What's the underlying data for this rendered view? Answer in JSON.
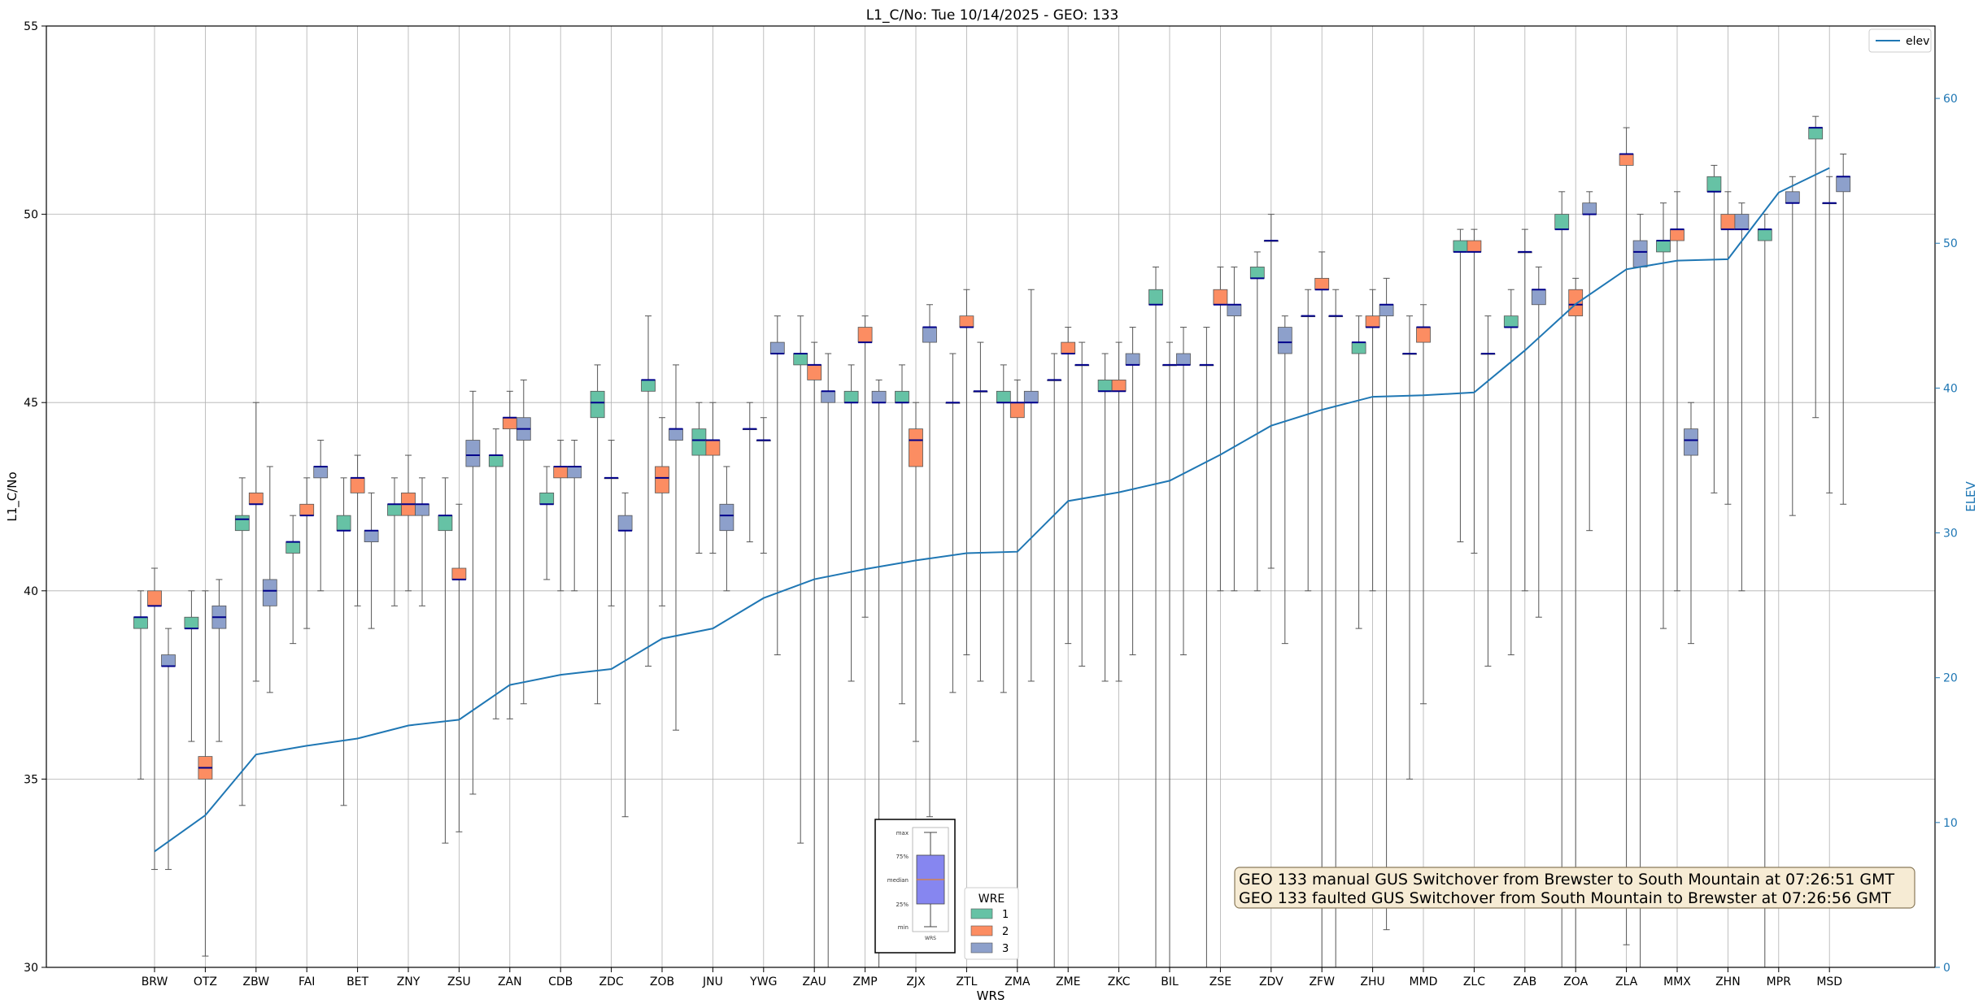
{
  "chart_data": {
    "type": "box",
    "title": "L1_C/No: Tue 10/14/2025 - GEO: 133",
    "xlabel": "WRS",
    "ylabel": "L1_C/No",
    "ylabel_right": "ELEV",
    "ylim": [
      30,
      55
    ],
    "ylim_right": [
      0,
      65
    ],
    "yticks": [
      30,
      35,
      40,
      45,
      50,
      55
    ],
    "yticks_right": [
      0,
      10,
      20,
      30,
      40,
      50,
      60
    ],
    "grid": true,
    "categories": [
      "BRW",
      "OTZ",
      "ZBW",
      "FAI",
      "BET",
      "ZNY",
      "ZSU",
      "ZAN",
      "CDB",
      "ZDC",
      "ZOB",
      "JNU",
      "YWG",
      "ZAU",
      "ZMP",
      "ZJX",
      "ZTL",
      "ZMA",
      "ZME",
      "ZKC",
      "BIL",
      "ZSE",
      "ZDV",
      "ZFW",
      "ZHU",
      "MMD",
      "ZLC",
      "ZAB",
      "ZOA",
      "ZLA",
      "MMX",
      "ZHN",
      "MPR",
      "MSD"
    ],
    "wre_colors": {
      "1": "#66c2a5",
      "2": "#fc8d62",
      "3": "#8da0cb"
    },
    "boxes": [
      {
        "site": "BRW",
        "wre": 1,
        "min": 35.0,
        "q1": 39.0,
        "median": 39.3,
        "q3": 39.3,
        "max": 40.0
      },
      {
        "site": "BRW",
        "wre": 2,
        "min": 32.6,
        "q1": 39.6,
        "median": 39.6,
        "q3": 40.0,
        "max": 40.6
      },
      {
        "site": "BRW",
        "wre": 3,
        "min": 32.6,
        "q1": 38.0,
        "median": 38.0,
        "q3": 38.3,
        "max": 39.0
      },
      {
        "site": "OTZ",
        "wre": 1,
        "min": 36.0,
        "q1": 39.0,
        "median": 39.0,
        "q3": 39.3,
        "max": 40.0
      },
      {
        "site": "OTZ",
        "wre": 2,
        "min": 30.3,
        "q1": 35.0,
        "median": 35.3,
        "q3": 35.6,
        "max": 40.0
      },
      {
        "site": "OTZ",
        "wre": 3,
        "min": 36.0,
        "q1": 39.0,
        "median": 39.3,
        "q3": 39.6,
        "max": 40.3
      },
      {
        "site": "ZBW",
        "wre": 1,
        "min": 34.3,
        "q1": 41.6,
        "median": 41.9,
        "q3": 42.0,
        "max": 43.0
      },
      {
        "site": "ZBW",
        "wre": 2,
        "min": 37.6,
        "q1": 42.3,
        "median": 42.3,
        "q3": 42.6,
        "max": 45.0
      },
      {
        "site": "ZBW",
        "wre": 3,
        "min": 37.3,
        "q1": 39.6,
        "median": 40.0,
        "q3": 40.3,
        "max": 43.3
      },
      {
        "site": "FAI",
        "wre": 1,
        "min": 38.6,
        "q1": 41.0,
        "median": 41.3,
        "q3": 41.3,
        "max": 42.0
      },
      {
        "site": "FAI",
        "wre": 2,
        "min": 39.0,
        "q1": 42.0,
        "median": 42.0,
        "q3": 42.3,
        "max": 43.0
      },
      {
        "site": "FAI",
        "wre": 3,
        "min": 40.0,
        "q1": 43.0,
        "median": 43.3,
        "q3": 43.3,
        "max": 44.0
      },
      {
        "site": "BET",
        "wre": 1,
        "min": 34.3,
        "q1": 41.6,
        "median": 41.6,
        "q3": 42.0,
        "max": 43.0
      },
      {
        "site": "BET",
        "wre": 2,
        "min": 39.6,
        "q1": 42.6,
        "median": 43.0,
        "q3": 43.0,
        "max": 43.6
      },
      {
        "site": "BET",
        "wre": 3,
        "min": 39.0,
        "q1": 41.3,
        "median": 41.6,
        "q3": 41.6,
        "max": 42.6
      },
      {
        "site": "ZNY",
        "wre": 1,
        "min": 39.6,
        "q1": 42.0,
        "median": 42.3,
        "q3": 42.3,
        "max": 43.0
      },
      {
        "site": "ZNY",
        "wre": 2,
        "min": 40.0,
        "q1": 42.0,
        "median": 42.3,
        "q3": 42.6,
        "max": 43.6
      },
      {
        "site": "ZNY",
        "wre": 3,
        "min": 39.6,
        "q1": 42.0,
        "median": 42.3,
        "q3": 42.3,
        "max": 43.0
      },
      {
        "site": "ZSU",
        "wre": 1,
        "min": 33.3,
        "q1": 41.6,
        "median": 42.0,
        "q3": 42.0,
        "max": 43.0
      },
      {
        "site": "ZSU",
        "wre": 2,
        "min": 33.6,
        "q1": 40.3,
        "median": 40.3,
        "q3": 40.6,
        "max": 42.3
      },
      {
        "site": "ZSU",
        "wre": 3,
        "min": 34.6,
        "q1": 43.3,
        "median": 43.6,
        "q3": 44.0,
        "max": 45.3
      },
      {
        "site": "ZAN",
        "wre": 1,
        "min": 36.6,
        "q1": 43.3,
        "median": 43.6,
        "q3": 43.6,
        "max": 44.3
      },
      {
        "site": "ZAN",
        "wre": 2,
        "min": 36.6,
        "q1": 44.3,
        "median": 44.6,
        "q3": 44.6,
        "max": 45.3
      },
      {
        "site": "ZAN",
        "wre": 3,
        "min": 37.0,
        "q1": 44.0,
        "median": 44.3,
        "q3": 44.6,
        "max": 45.6
      },
      {
        "site": "CDB",
        "wre": 1,
        "min": 40.3,
        "q1": 42.3,
        "median": 42.3,
        "q3": 42.6,
        "max": 43.3
      },
      {
        "site": "CDB",
        "wre": 2,
        "min": 40.0,
        "q1": 43.0,
        "median": 43.3,
        "q3": 43.3,
        "max": 44.0
      },
      {
        "site": "CDB",
        "wre": 3,
        "min": 40.0,
        "q1": 43.0,
        "median": 43.3,
        "q3": 43.3,
        "max": 44.0
      },
      {
        "site": "ZDC",
        "wre": 1,
        "min": 37.0,
        "q1": 44.6,
        "median": 45.0,
        "q3": 45.3,
        "max": 46.0
      },
      {
        "site": "ZDC",
        "wre": 2,
        "min": 39.6,
        "q1": 43.0,
        "median": 43.0,
        "q3": 43.0,
        "max": 44.0
      },
      {
        "site": "ZDC",
        "wre": 3,
        "min": 34.0,
        "q1": 41.6,
        "median": 41.6,
        "q3": 42.0,
        "max": 42.6
      },
      {
        "site": "ZOB",
        "wre": 1,
        "min": 38.0,
        "q1": 45.3,
        "median": 45.6,
        "q3": 45.6,
        "max": 47.3
      },
      {
        "site": "ZOB",
        "wre": 2,
        "min": 39.6,
        "q1": 42.6,
        "median": 43.0,
        "q3": 43.3,
        "max": 44.6
      },
      {
        "site": "ZOB",
        "wre": 3,
        "min": 36.3,
        "q1": 44.0,
        "median": 44.3,
        "q3": 44.3,
        "max": 46.0
      },
      {
        "site": "JNU",
        "wre": 1,
        "min": 41.0,
        "q1": 43.6,
        "median": 44.0,
        "q3": 44.3,
        "max": 45.0
      },
      {
        "site": "JNU",
        "wre": 2,
        "min": 41.0,
        "q1": 43.6,
        "median": 44.0,
        "q3": 44.0,
        "max": 45.0
      },
      {
        "site": "JNU",
        "wre": 3,
        "min": 40.0,
        "q1": 41.6,
        "median": 42.0,
        "q3": 42.3,
        "max": 43.3
      },
      {
        "site": "YWG",
        "wre": 1,
        "min": 41.3,
        "q1": 44.3,
        "median": 44.3,
        "q3": 44.3,
        "max": 45.0
      },
      {
        "site": "YWG",
        "wre": 2,
        "min": 41.0,
        "q1": 44.0,
        "median": 44.0,
        "q3": 44.0,
        "max": 44.6
      },
      {
        "site": "YWG",
        "wre": 3,
        "min": 38.3,
        "q1": 46.3,
        "median": 46.3,
        "q3": 46.6,
        "max": 47.3
      },
      {
        "site": "ZAU",
        "wre": 1,
        "min": 33.3,
        "q1": 46.0,
        "median": 46.3,
        "q3": 46.3,
        "max": 47.3
      },
      {
        "site": "ZAU",
        "wre": 2,
        "min": 30.0,
        "q1": 45.6,
        "median": 46.0,
        "q3": 46.0,
        "max": 46.6
      },
      {
        "site": "ZAU",
        "wre": 3,
        "min": 30.0,
        "q1": 45.0,
        "median": 45.3,
        "q3": 45.3,
        "max": 46.3
      },
      {
        "site": "ZMP",
        "wre": 1,
        "min": 37.6,
        "q1": 45.0,
        "median": 45.0,
        "q3": 45.3,
        "max": 46.0
      },
      {
        "site": "ZMP",
        "wre": 2,
        "min": 39.3,
        "q1": 46.6,
        "median": 46.6,
        "q3": 47.0,
        "max": 47.3
      },
      {
        "site": "ZMP",
        "wre": 3,
        "min": 30.0,
        "q1": 45.0,
        "median": 45.0,
        "q3": 45.3,
        "max": 45.6
      },
      {
        "site": "ZJX",
        "wre": 1,
        "min": 37.0,
        "q1": 45.0,
        "median": 45.0,
        "q3": 45.3,
        "max": 46.0
      },
      {
        "site": "ZJX",
        "wre": 2,
        "min": 36.0,
        "q1": 43.3,
        "median": 44.0,
        "q3": 44.3,
        "max": 45.0
      },
      {
        "site": "ZJX",
        "wre": 3,
        "min": 34.0,
        "q1": 46.6,
        "median": 47.0,
        "q3": 47.0,
        "max": 47.6
      },
      {
        "site": "ZTL",
        "wre": 1,
        "min": 37.3,
        "q1": 45.0,
        "median": 45.0,
        "q3": 45.0,
        "max": 46.3
      },
      {
        "site": "ZTL",
        "wre": 2,
        "min": 38.3,
        "q1": 47.0,
        "median": 47.0,
        "q3": 47.3,
        "max": 48.0
      },
      {
        "site": "ZTL",
        "wre": 3,
        "min": 37.6,
        "q1": 45.3,
        "median": 45.3,
        "q3": 45.3,
        "max": 46.6
      },
      {
        "site": "ZMA",
        "wre": 1,
        "min": 37.3,
        "q1": 45.0,
        "median": 45.0,
        "q3": 45.3,
        "max": 46.0
      },
      {
        "site": "ZMA",
        "wre": 2,
        "min": 30.0,
        "q1": 44.6,
        "median": 45.0,
        "q3": 45.0,
        "max": 45.6
      },
      {
        "site": "ZMA",
        "wre": 3,
        "min": 37.6,
        "q1": 45.0,
        "median": 45.0,
        "q3": 45.3,
        "max": 48.0
      },
      {
        "site": "ZME",
        "wre": 1,
        "min": 30.0,
        "q1": 45.6,
        "median": 45.6,
        "q3": 45.6,
        "max": 46.3
      },
      {
        "site": "ZME",
        "wre": 2,
        "min": 38.6,
        "q1": 46.3,
        "median": 46.3,
        "q3": 46.6,
        "max": 47.0
      },
      {
        "site": "ZME",
        "wre": 3,
        "min": 38.0,
        "q1": 46.0,
        "median": 46.0,
        "q3": 46.0,
        "max": 46.6
      },
      {
        "site": "ZKC",
        "wre": 1,
        "min": 37.6,
        "q1": 45.3,
        "median": 45.3,
        "q3": 45.6,
        "max": 46.3
      },
      {
        "site": "ZKC",
        "wre": 2,
        "min": 37.6,
        "q1": 45.3,
        "median": 45.3,
        "q3": 45.6,
        "max": 46.6
      },
      {
        "site": "ZKC",
        "wre": 3,
        "min": 38.3,
        "q1": 46.0,
        "median": 46.0,
        "q3": 46.3,
        "max": 47.0
      },
      {
        "site": "BIL",
        "wre": 1,
        "min": 30.0,
        "q1": 47.6,
        "median": 47.6,
        "q3": 48.0,
        "max": 48.6
      },
      {
        "site": "BIL",
        "wre": 2,
        "min": 30.0,
        "q1": 46.0,
        "median": 46.0,
        "q3": 46.0,
        "max": 46.6
      },
      {
        "site": "BIL",
        "wre": 3,
        "min": 38.3,
        "q1": 46.0,
        "median": 46.0,
        "q3": 46.3,
        "max": 47.0
      },
      {
        "site": "ZSE",
        "wre": 1,
        "min": 30.0,
        "q1": 46.0,
        "median": 46.0,
        "q3": 46.0,
        "max": 47.0
      },
      {
        "site": "ZSE",
        "wre": 2,
        "min": 40.0,
        "q1": 47.6,
        "median": 47.6,
        "q3": 48.0,
        "max": 48.6
      },
      {
        "site": "ZSE",
        "wre": 3,
        "min": 40.0,
        "q1": 47.3,
        "median": 47.6,
        "q3": 47.6,
        "max": 48.6
      },
      {
        "site": "ZDV",
        "wre": 1,
        "min": 40.0,
        "q1": 48.3,
        "median": 48.3,
        "q3": 48.6,
        "max": 49.0
      },
      {
        "site": "ZDV",
        "wre": 2,
        "min": 40.6,
        "q1": 49.3,
        "median": 49.3,
        "q3": 49.3,
        "max": 50.0
      },
      {
        "site": "ZDV",
        "wre": 3,
        "min": 38.6,
        "q1": 46.3,
        "median": 46.6,
        "q3": 47.0,
        "max": 47.3
      },
      {
        "site": "ZFW",
        "wre": 1,
        "min": 40.0,
        "q1": 47.3,
        "median": 47.3,
        "q3": 47.3,
        "max": 48.0
      },
      {
        "site": "ZFW",
        "wre": 2,
        "min": 30.0,
        "q1": 48.0,
        "median": 48.0,
        "q3": 48.3,
        "max": 49.0
      },
      {
        "site": "ZFW",
        "wre": 3,
        "min": 30.0,
        "q1": 47.3,
        "median": 47.3,
        "q3": 47.3,
        "max": 48.0
      },
      {
        "site": "ZHU",
        "wre": 1,
        "min": 39.0,
        "q1": 46.3,
        "median": 46.6,
        "q3": 46.6,
        "max": 47.3
      },
      {
        "site": "ZHU",
        "wre": 2,
        "min": 40.0,
        "q1": 47.0,
        "median": 47.0,
        "q3": 47.3,
        "max": 48.0
      },
      {
        "site": "ZHU",
        "wre": 3,
        "min": 31.0,
        "q1": 47.3,
        "median": 47.6,
        "q3": 47.6,
        "max": 48.3
      },
      {
        "site": "MMD",
        "wre": 1,
        "min": 35.0,
        "q1": 46.3,
        "median": 46.3,
        "q3": 46.3,
        "max": 47.3
      },
      {
        "site": "MMD",
        "wre": 2,
        "min": 37.0,
        "q1": 46.6,
        "median": 47.0,
        "q3": 47.0,
        "max": 47.6
      },
      {
        "site": "ZLC",
        "wre": 1,
        "min": 41.3,
        "q1": 49.0,
        "median": 49.0,
        "q3": 49.3,
        "max": 49.6
      },
      {
        "site": "ZLC",
        "wre": 2,
        "min": 41.0,
        "q1": 49.0,
        "median": 49.0,
        "q3": 49.3,
        "max": 49.6
      },
      {
        "site": "ZLC",
        "wre": 3,
        "min": 38.0,
        "q1": 46.3,
        "median": 46.3,
        "q3": 46.3,
        "max": 47.3
      },
      {
        "site": "ZAB",
        "wre": 1,
        "min": 38.3,
        "q1": 47.0,
        "median": 47.0,
        "q3": 47.3,
        "max": 48.0
      },
      {
        "site": "ZAB",
        "wre": 2,
        "min": 40.0,
        "q1": 49.0,
        "median": 49.0,
        "q3": 49.0,
        "max": 49.6
      },
      {
        "site": "ZAB",
        "wre": 3,
        "min": 39.3,
        "q1": 47.6,
        "median": 48.0,
        "q3": 48.0,
        "max": 48.6
      },
      {
        "site": "ZOA",
        "wre": 1,
        "min": 30.0,
        "q1": 49.6,
        "median": 49.6,
        "q3": 50.0,
        "max": 50.6
      },
      {
        "site": "ZOA",
        "wre": 2,
        "min": 30.0,
        "q1": 47.3,
        "median": 47.6,
        "q3": 48.0,
        "max": 48.3
      },
      {
        "site": "ZOA",
        "wre": 3,
        "min": 41.6,
        "q1": 50.0,
        "median": 50.0,
        "q3": 50.3,
        "max": 50.6
      },
      {
        "site": "ZLA",
        "wre": 2,
        "min": 30.6,
        "q1": 51.3,
        "median": 51.6,
        "q3": 51.6,
        "max": 52.3
      },
      {
        "site": "ZLA",
        "wre": 3,
        "min": 30.0,
        "q1": 48.6,
        "median": 49.0,
        "q3": 49.3,
        "max": 50.0
      },
      {
        "site": "MMX",
        "wre": 1,
        "min": 39.0,
        "q1": 49.0,
        "median": 49.3,
        "q3": 49.3,
        "max": 50.3
      },
      {
        "site": "MMX",
        "wre": 2,
        "min": 40.0,
        "q1": 49.3,
        "median": 49.6,
        "q3": 49.6,
        "max": 50.6
      },
      {
        "site": "MMX",
        "wre": 3,
        "min": 38.6,
        "q1": 43.6,
        "median": 44.0,
        "q3": 44.3,
        "max": 45.0
      },
      {
        "site": "ZHN",
        "wre": 1,
        "min": 42.6,
        "q1": 50.6,
        "median": 50.6,
        "q3": 51.0,
        "max": 51.3
      },
      {
        "site": "ZHN",
        "wre": 2,
        "min": 42.3,
        "q1": 49.6,
        "median": 49.6,
        "q3": 50.0,
        "max": 50.6
      },
      {
        "site": "ZHN",
        "wre": 3,
        "min": 40.0,
        "q1": 49.6,
        "median": 49.6,
        "q3": 50.0,
        "max": 50.3
      },
      {
        "site": "MPR",
        "wre": 1,
        "min": 30.0,
        "q1": 49.3,
        "median": 49.6,
        "q3": 49.6,
        "max": 50.0
      },
      {
        "site": "MPR",
        "wre": 3,
        "min": 42.0,
        "q1": 50.3,
        "median": 50.3,
        "q3": 50.6,
        "max": 51.0
      },
      {
        "site": "MSD",
        "wre": 1,
        "min": 44.6,
        "q1": 52.0,
        "median": 52.3,
        "q3": 52.3,
        "max": 52.6
      },
      {
        "site": "MSD",
        "wre": 2,
        "min": 42.6,
        "q1": 50.3,
        "median": 50.3,
        "q3": 50.3,
        "max": 51.0
      },
      {
        "site": "MSD",
        "wre": 3,
        "min": 42.3,
        "q1": 50.6,
        "median": 51.0,
        "q3": 51.0,
        "max": 51.6
      }
    ],
    "elev_series": {
      "name": "elev",
      "color": "#1f77b4",
      "values": [
        8.0,
        10.5,
        14.7,
        15.3,
        15.8,
        16.7,
        17.1,
        19.5,
        20.2,
        20.6,
        22.7,
        23.4,
        25.5,
        26.8,
        27.5,
        28.1,
        28.6,
        28.7,
        32.2,
        32.8,
        33.6,
        35.4,
        37.4,
        38.5,
        39.4,
        39.5,
        39.7,
        42.6,
        45.8,
        48.2,
        48.8,
        48.9,
        53.5,
        55.2
      ]
    },
    "legend_elev": "elev",
    "legend_elev_position": "top-right",
    "legend_wre": {
      "title": "WRE",
      "entries": [
        "1",
        "2",
        "3"
      ],
      "position": "lower-center"
    },
    "boxplot_key_labels": [
      "max",
      "75%",
      "median",
      "25%",
      "min",
      "WRS"
    ],
    "annotations": [
      "GEO 133 manual GUS Switchover from Brewster to South Mountain at 07:26:51 GMT",
      "GEO 133 faulted GUS Switchover from South Mountain to Brewster at 07:26:56 GMT"
    ]
  }
}
